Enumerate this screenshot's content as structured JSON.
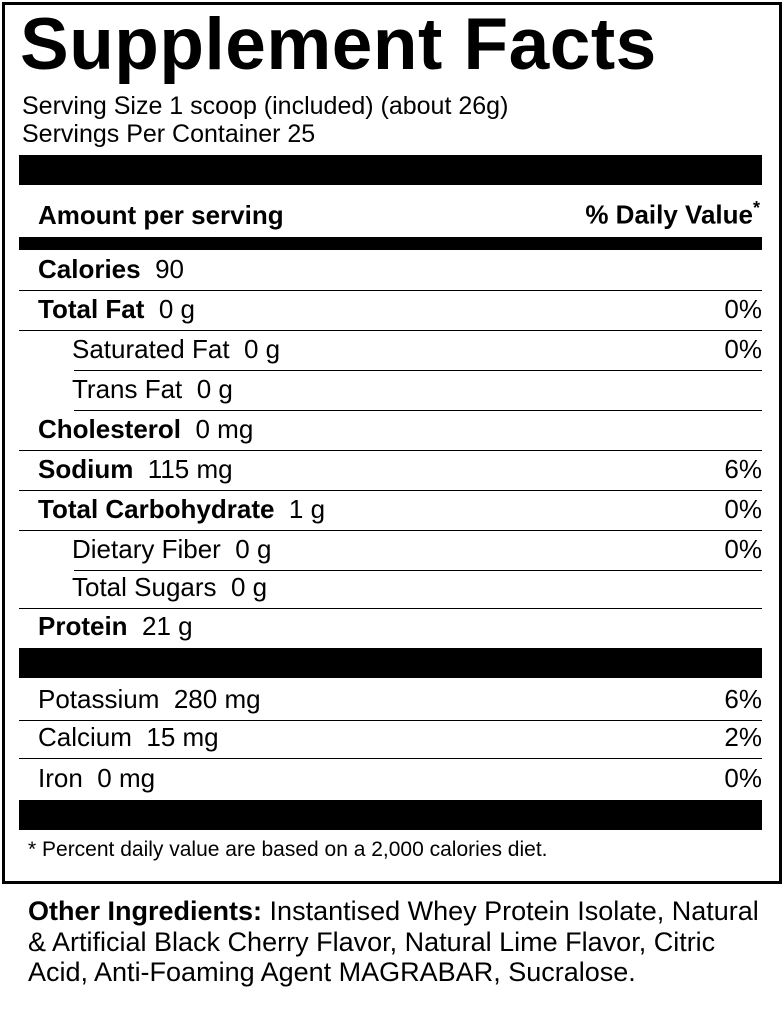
{
  "title": "Supplement Facts",
  "serving_size": "Serving Size 1 scoop (included) (about 26g)",
  "servings_per_container": "Servings Per Container 25",
  "header": {
    "amount": "Amount per serving",
    "daily_value": "% Daily Value",
    "asterisk": "*"
  },
  "calories": {
    "label": "Calories",
    "value": "90"
  },
  "nutrients": [
    {
      "label": "Total Fat",
      "amount": "0 g",
      "dv": "0%"
    },
    {
      "label": "Saturated Fat",
      "amount": "0 g",
      "dv": "0%"
    },
    {
      "label": "Trans Fat",
      "amount": "0 g",
      "dv": ""
    },
    {
      "label": "Cholesterol",
      "amount": "0 mg",
      "dv": ""
    },
    {
      "label": "Sodium",
      "amount": "115 mg",
      "dv": "6%"
    },
    {
      "label": "Total Carbohydrate",
      "amount": "1 g",
      "dv": "0%"
    },
    {
      "label": "Dietary Fiber",
      "amount": "0 g",
      "dv": "0%"
    },
    {
      "label": "Total Sugars",
      "amount": "0 g",
      "dv": ""
    },
    {
      "label": "Protein",
      "amount": "21 g",
      "dv": ""
    }
  ],
  "minerals": [
    {
      "label": "Potassium",
      "amount": "280 mg",
      "dv": "6%"
    },
    {
      "label": "Calcium",
      "amount": "15 mg",
      "dv": "2%"
    },
    {
      "label": "Iron",
      "amount": "0 mg",
      "dv": "0%"
    }
  ],
  "footnote": "* Percent daily value are based on a 2,000 calories diet.",
  "ingredients": {
    "label": "Other Ingredients:",
    "text": "Instantised Whey Protein Isolate, Natural & Artificial Black Cherry Flavor, Natural Lime Flavor, Citric Acid, Anti-Foaming Agent MAGRABAR, Sucralose."
  }
}
